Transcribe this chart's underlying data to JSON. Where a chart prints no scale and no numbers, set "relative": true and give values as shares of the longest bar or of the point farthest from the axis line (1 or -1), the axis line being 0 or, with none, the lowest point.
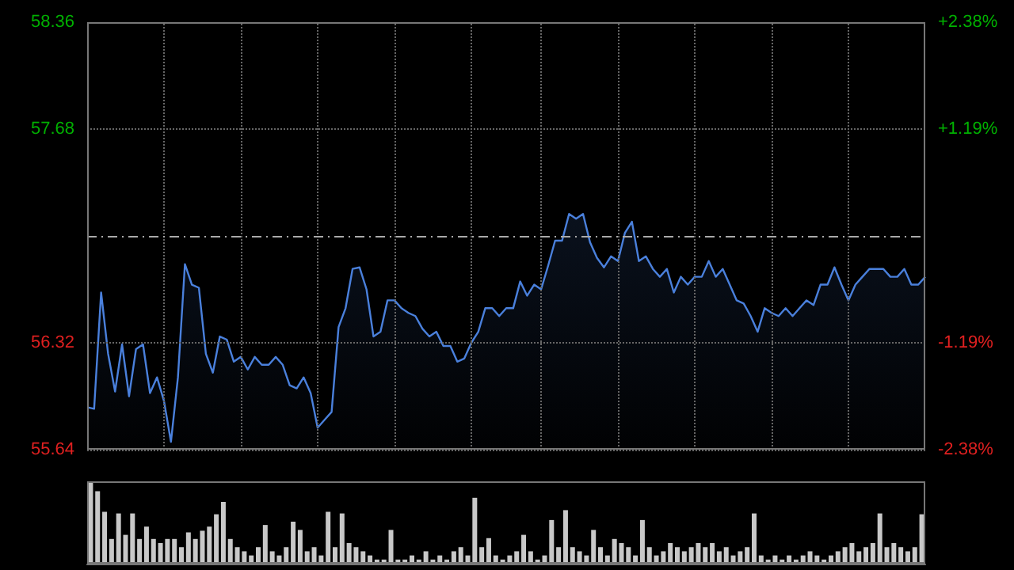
{
  "chart_data": [
    {
      "type": "area",
      "categories": [
        null,
        null,
        null,
        null,
        null,
        null,
        null,
        null,
        null,
        null,
        null,
        null,
        null,
        null,
        null,
        null,
        null,
        null,
        null,
        null,
        null,
        null,
        null,
        null,
        null,
        null,
        null,
        null,
        null,
        null,
        null,
        null,
        null,
        null,
        null,
        null,
        null,
        null,
        null,
        null,
        null,
        null,
        null,
        null,
        null,
        null,
        null,
        null,
        null,
        null,
        null,
        null,
        null,
        null,
        null,
        null,
        null,
        null,
        null,
        null,
        null,
        null,
        null,
        null,
        null,
        null,
        null,
        null,
        null,
        null,
        null,
        null,
        null,
        null,
        null,
        null,
        null,
        null,
        null,
        null,
        null,
        null,
        null,
        null,
        null,
        null,
        null,
        null,
        null,
        null,
        null,
        null,
        null,
        null,
        null,
        null,
        null,
        null,
        null,
        null,
        null,
        null,
        null,
        null,
        null,
        null,
        null,
        null,
        null,
        null,
        null,
        null,
        null,
        null,
        null,
        null,
        null,
        null,
        null,
        null,
        null
      ],
      "ylim": [
        55.64,
        58.36
      ],
      "yticks": [
        55.64,
        56.32,
        57.68,
        58.36
      ],
      "y2lim": [
        -2.38,
        2.38
      ],
      "y2ticks": [
        {
          "value": -2.38,
          "label": "-2.38%"
        },
        {
          "value": -1.19,
          "label": "-1.19%"
        },
        {
          "value": 1.19,
          "label": "+1.19%"
        },
        {
          "value": 2.38,
          "label": "+2.38%"
        }
      ],
      "tick_labels": "y",
      "grid": true,
      "ref_lines": [
        {
          "axis": "y",
          "value": 57.0,
          "label": null,
          "color": "#aaaaaa",
          "line_style": "dashdot"
        }
      ],
      "series": [
        {
          "color": "#4a80dc",
          "values": [
            55.91,
            55.9,
            56.64,
            56.25,
            56.01,
            56.31,
            55.98,
            56.28,
            56.31,
            56.0,
            56.1,
            55.95,
            55.69,
            56.1,
            56.82,
            56.69,
            56.67,
            56.25,
            56.13,
            56.36,
            56.34,
            56.2,
            56.23,
            56.15,
            56.23,
            56.18,
            56.18,
            56.23,
            56.18,
            56.05,
            56.03,
            56.1,
            56.0,
            55.78,
            55.83,
            55.88,
            56.42,
            56.54,
            56.79,
            56.8,
            56.66,
            56.36,
            56.39,
            56.59,
            56.59,
            56.54,
            56.51,
            56.49,
            56.41,
            56.36,
            56.39,
            56.3,
            56.3,
            56.2,
            56.22,
            56.32,
            56.39,
            56.54,
            56.54,
            56.49,
            56.54,
            56.54,
            56.71,
            56.62,
            56.69,
            56.66,
            56.81,
            56.97,
            56.97,
            57.14,
            57.11,
            57.14,
            56.96,
            56.86,
            56.8,
            56.87,
            56.84,
            57.02,
            57.09,
            56.84,
            56.87,
            56.79,
            56.74,
            56.79,
            56.64,
            56.74,
            56.69,
            56.74,
            56.74,
            56.84,
            56.74,
            56.79,
            56.69,
            56.59,
            56.57,
            56.49,
            56.39,
            56.54,
            56.51,
            56.49,
            56.54,
            56.49,
            56.54,
            56.59,
            56.56,
            56.69,
            56.69,
            56.8,
            56.69,
            56.59,
            56.69,
            56.74,
            56.79,
            56.79,
            56.79,
            56.74,
            56.74,
            56.79,
            56.69,
            56.69,
            56.74
          ]
        }
      ]
    },
    {
      "type": "bar",
      "relative": true,
      "tick_labels": false,
      "color": "#c8c8c8",
      "categories": [
        null,
        null,
        null,
        null,
        null,
        null,
        null,
        null,
        null,
        null,
        null,
        null,
        null,
        null,
        null,
        null,
        null,
        null,
        null,
        null,
        null,
        null,
        null,
        null,
        null,
        null,
        null,
        null,
        null,
        null,
        null,
        null,
        null,
        null,
        null,
        null,
        null,
        null,
        null,
        null,
        null,
        null,
        null,
        null,
        null,
        null,
        null,
        null,
        null,
        null,
        null,
        null,
        null,
        null,
        null,
        null,
        null,
        null,
        null,
        null,
        null,
        null,
        null,
        null,
        null,
        null,
        null,
        null,
        null,
        null,
        null,
        null,
        null,
        null,
        null,
        null,
        null,
        null,
        null,
        null,
        null,
        null,
        null,
        null,
        null,
        null,
        null,
        null,
        null,
        null,
        null,
        null,
        null,
        null,
        null,
        null,
        null,
        null,
        null,
        null,
        null,
        null,
        null,
        null,
        null,
        null,
        null,
        null,
        null,
        null,
        null,
        null,
        null,
        null,
        null,
        null,
        null,
        null,
        null,
        null
      ],
      "values": [
        1.0,
        0.88,
        0.63,
        0.3,
        0.61,
        0.35,
        0.61,
        0.3,
        0.45,
        0.3,
        0.25,
        0.3,
        0.3,
        0.2,
        0.38,
        0.3,
        0.4,
        0.45,
        0.6,
        0.75,
        0.3,
        0.2,
        0.15,
        0.1,
        0.2,
        0.47,
        0.15,
        0.1,
        0.2,
        0.51,
        0.41,
        0.15,
        0.2,
        0.1,
        0.63,
        0.2,
        0.61,
        0.25,
        0.2,
        0.15,
        0.1,
        0.05,
        0.05,
        0.41,
        0.05,
        0.05,
        0.1,
        0.05,
        0.15,
        0.05,
        0.1,
        0.05,
        0.15,
        0.2,
        0.1,
        0.8,
        0.2,
        0.31,
        0.1,
        0.05,
        0.1,
        0.15,
        0.35,
        0.15,
        0.05,
        0.1,
        0.53,
        0.2,
        0.65,
        0.2,
        0.15,
        0.1,
        0.41,
        0.2,
        0.1,
        0.3,
        0.25,
        0.2,
        0.1,
        0.53,
        0.2,
        0.1,
        0.15,
        0.25,
        0.2,
        0.15,
        0.2,
        0.25,
        0.2,
        0.25,
        0.15,
        0.2,
        0.1,
        0.15,
        0.2,
        0.61,
        0.1,
        0.05,
        0.1,
        0.05,
        0.1,
        0.05,
        0.1,
        0.15,
        0.1,
        0.05,
        0.1,
        0.15,
        0.2,
        0.25,
        0.15,
        0.2,
        0.25,
        0.61,
        0.2,
        0.25,
        0.2,
        0.15,
        0.2,
        0.6
      ]
    }
  ]
}
